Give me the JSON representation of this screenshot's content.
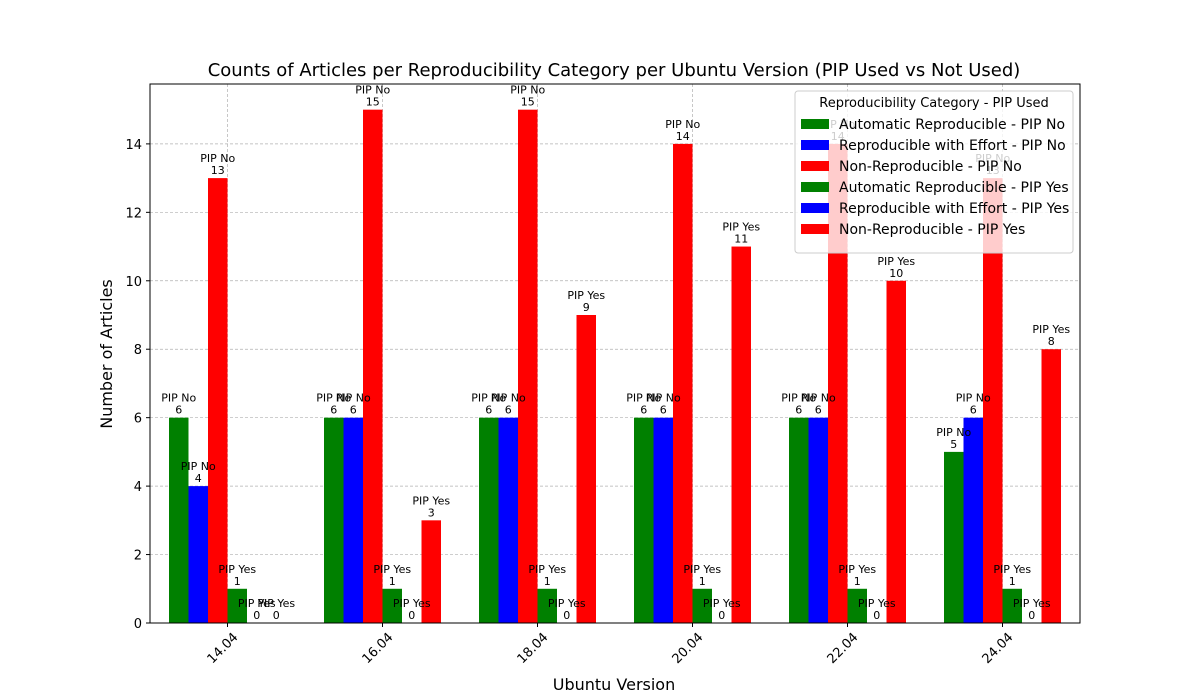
{
  "chart_data": {
    "type": "bar",
    "title": "Counts of Articles per Reproducibility Category per Ubuntu Version (PIP Used vs Not Used)",
    "xlabel": "Ubuntu Version",
    "ylabel": "Number of Articles",
    "categories": [
      "14.04",
      "16.04",
      "18.04",
      "20.04",
      "22.04",
      "24.04"
    ],
    "ylim": [
      0,
      15.75
    ],
    "yticks": [
      0,
      2,
      4,
      6,
      8,
      10,
      12,
      14
    ],
    "grid": true,
    "legend": {
      "title": "Reproducibility Category - PIP Used",
      "placement": "top-right"
    },
    "series": [
      {
        "name": "Automatic Reproducible - PIP No",
        "tag": "PIP No",
        "color": "#008000",
        "values": [
          6,
          6,
          6,
          6,
          6,
          5
        ]
      },
      {
        "name": "Reproducible with Effort - PIP No",
        "tag": "PIP No",
        "color": "#0000ff",
        "values": [
          4,
          6,
          6,
          6,
          6,
          6
        ]
      },
      {
        "name": "Non-Reproducible - PIP No",
        "tag": "PIP No",
        "color": "#ff0000",
        "values": [
          13,
          15,
          15,
          14,
          14,
          13
        ]
      },
      {
        "name": "Automatic Reproducible - PIP Yes",
        "tag": "PIP Yes",
        "color": "#008000",
        "values": [
          1,
          1,
          1,
          1,
          1,
          1
        ]
      },
      {
        "name": "Reproducible with Effort - PIP Yes",
        "tag": "PIP Yes",
        "color": "#0000ff",
        "values": [
          0,
          0,
          0,
          0,
          0,
          0
        ]
      },
      {
        "name": "Non-Reproducible - PIP Yes",
        "tag": "PIP Yes",
        "color": "#ff0000",
        "values": [
          0,
          3,
          9,
          11,
          10,
          8
        ]
      }
    ]
  }
}
